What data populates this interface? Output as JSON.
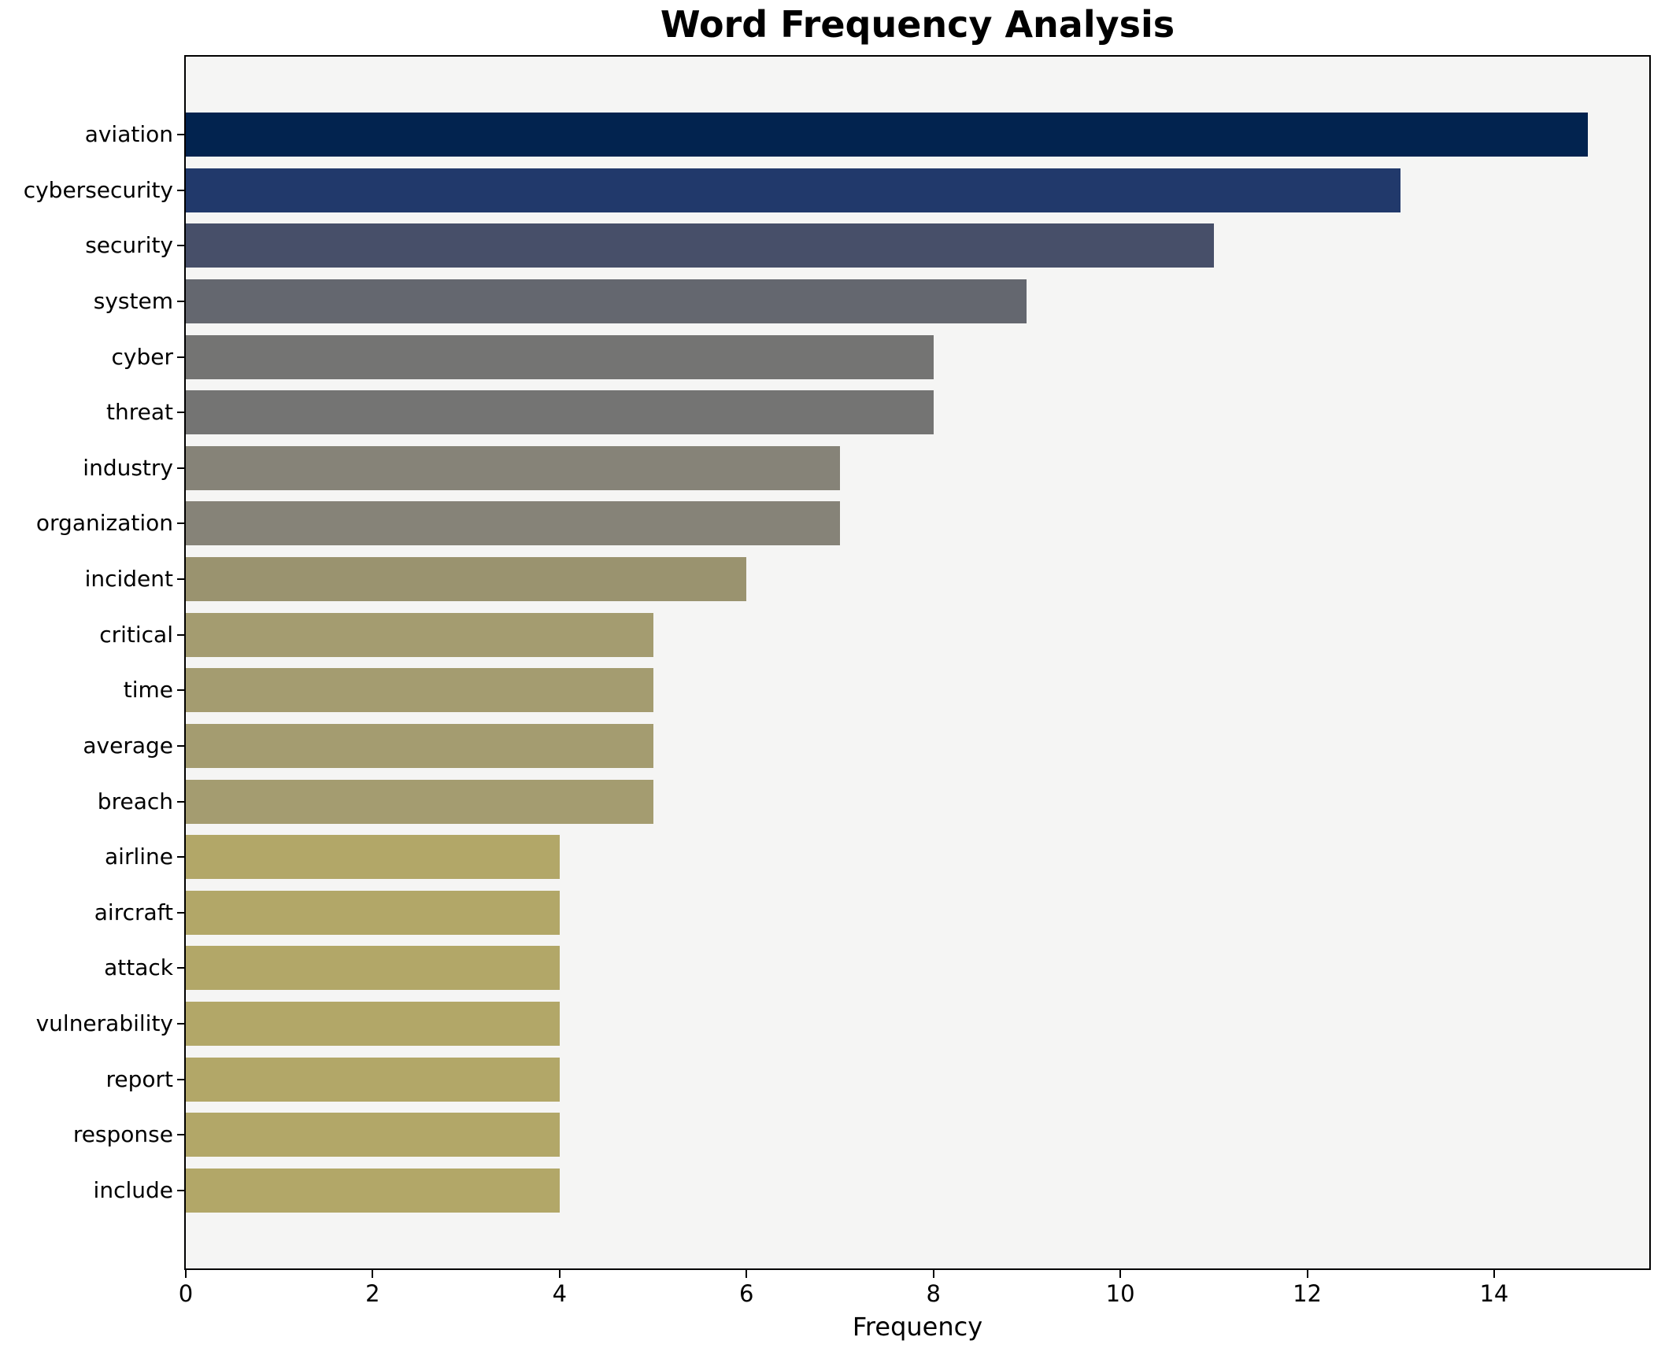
{
  "chart_data": {
    "type": "bar",
    "orientation": "horizontal",
    "title": "Word Frequency Analysis",
    "xlabel": "Frequency",
    "ylabel": "",
    "categories": [
      "aviation",
      "cybersecurity",
      "security",
      "system",
      "cyber",
      "threat",
      "industry",
      "organization",
      "incident",
      "critical",
      "time",
      "average",
      "breach",
      "airline",
      "aircraft",
      "attack",
      "vulnerability",
      "report",
      "response",
      "include"
    ],
    "values": [
      15,
      13,
      11,
      9,
      8,
      8,
      7,
      7,
      6,
      5,
      5,
      5,
      5,
      4,
      4,
      4,
      4,
      4,
      4,
      4
    ],
    "bar_colors": [
      "#02234f",
      "#21396b",
      "#474f69",
      "#64676f",
      "#747473",
      "#747473",
      "#868378",
      "#868378",
      "#9a936f",
      "#a49c70",
      "#a49c70",
      "#a49c70",
      "#a49c70",
      "#b2a768",
      "#b2a768",
      "#b2a768",
      "#b2a768",
      "#b2a768",
      "#b2a768",
      "#b2a768"
    ],
    "x_ticks": [
      0,
      2,
      4,
      6,
      8,
      10,
      12,
      14
    ],
    "xlim": [
      0,
      15.66
    ],
    "grid": false,
    "legend": false,
    "plot_background": "#f5f5f4",
    "figure_background": "#ffffff",
    "spine_color": "#000000",
    "text_color": "#000000"
  }
}
